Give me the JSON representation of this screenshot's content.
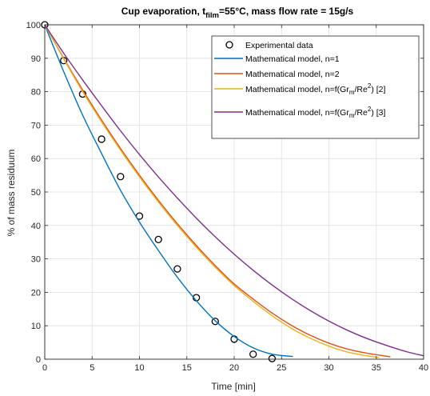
{
  "chart_data": {
    "type": "line",
    "title": {
      "prefix": "Cup evaporation, t",
      "subscript": "film",
      "suffix": "=55°C, mass flow rate = 15g/s"
    },
    "xlabel": "Time [min]",
    "ylabel": "% of mass residuum",
    "xlim": [
      0,
      40
    ],
    "ylim": [
      0,
      100
    ],
    "xticks": [
      "0",
      "5",
      "10",
      "15",
      "20",
      "25",
      "30",
      "35",
      "40"
    ],
    "yticks": [
      "0",
      "10",
      "20",
      "30",
      "40",
      "50",
      "60",
      "70",
      "80",
      "90",
      "100"
    ],
    "grid": true,
    "legend_position": "top-right",
    "series": [
      {
        "name": "Experimental data",
        "legend": {
          "text": "Experimental data"
        },
        "marker": "circle",
        "color": "#000000",
        "x": [
          0,
          2,
          4,
          6,
          8,
          10,
          12,
          14,
          16,
          18,
          20,
          22,
          24
        ],
        "y": [
          100,
          89.3,
          79.3,
          65.8,
          54.6,
          42.8,
          35.8,
          27,
          18.4,
          11.3,
          6,
          1.5,
          0.2
        ]
      },
      {
        "name": "Mathematical model, n=1",
        "legend": {
          "text": "Mathematical model, n=1"
        },
        "color": "#0072BD",
        "x": [
          0,
          2,
          4,
          6,
          8,
          10,
          12,
          14,
          16,
          18,
          20,
          22,
          24,
          26.2
        ],
        "y": [
          100,
          86,
          73,
          61.5,
          50.5,
          41,
          32.5,
          24.5,
          17.5,
          11.5,
          6.8,
          3.4,
          1.5,
          0.8
        ]
      },
      {
        "name": "Mathematical model, n=2",
        "legend": {
          "text": "Mathematical model, n=2"
        },
        "color": "#D95319",
        "x": [
          0,
          2,
          4,
          6,
          8,
          10,
          12,
          14,
          16,
          18,
          20,
          22,
          24,
          26,
          28,
          30,
          32,
          34,
          36.5
        ],
        "y": [
          100,
          90,
          80.5,
          71.5,
          63,
          55,
          47.5,
          40.5,
          34,
          28,
          22.5,
          18,
          13.8,
          10.2,
          7.2,
          4.8,
          3,
          1.8,
          0.7
        ]
      },
      {
        "name": "Mathematical model, n=f(Gr_m/Re^2) [2]",
        "legend": {
          "text": "Mathematical model, n=f(Gr",
          "sub": "m",
          "mid": "/Re",
          "sup": "2",
          "end": ") [2]"
        },
        "color": "#EDB120",
        "x": [
          0,
          2,
          4,
          6,
          8,
          10,
          12,
          14,
          16,
          18,
          20,
          22,
          24,
          26,
          28,
          30,
          32,
          34,
          35.3
        ],
        "y": [
          100,
          89.8,
          80,
          71,
          62.5,
          54.5,
          47,
          40,
          33.5,
          27.5,
          22,
          17.3,
          13,
          9.3,
          6.3,
          3.9,
          2.1,
          1,
          0.5
        ]
      },
      {
        "name": "Mathematical model, n=f(Gr_m/Re^2) [3]",
        "legend": {
          "text": "Mathematical model, n=f(Gr",
          "sub": "m",
          "mid": "/Re",
          "sup": "2",
          "end": ") [3]"
        },
        "color": "#7E2F8E",
        "x": [
          0,
          2,
          4,
          6,
          8,
          10,
          12,
          14,
          16,
          18,
          20,
          22,
          24,
          26,
          28,
          30,
          32,
          34,
          36,
          38,
          40
        ],
        "y": [
          100,
          91.5,
          83.5,
          75.8,
          68.3,
          61.2,
          54.5,
          48.2,
          42.2,
          36.6,
          31.4,
          26.6,
          22.2,
          18.2,
          14.6,
          11.4,
          8.6,
          6.2,
          4.2,
          2.4,
          1
        ]
      }
    ]
  }
}
